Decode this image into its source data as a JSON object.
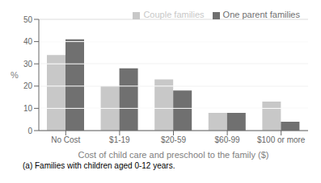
{
  "chart_data": {
    "type": "bar",
    "categories": [
      "No Cost",
      "$1-19",
      "$20-59",
      "$60-99",
      "$100 or more"
    ],
    "series": [
      {
        "name": "Couple families",
        "color": "#c8c8c8",
        "values": [
          34,
          20,
          23,
          8,
          13
        ]
      },
      {
        "name": "One parent families",
        "color": "#707070",
        "values": [
          41,
          28,
          18,
          8,
          4
        ]
      }
    ],
    "xlabel": "Cost of child care and preschool to the family ($)",
    "ylabel": "%",
    "ylim": [
      0,
      50
    ],
    "yticks": [
      0,
      10,
      20,
      30,
      40,
      50
    ],
    "grid": true,
    "legend": "upper right",
    "annotations": [
      "(a) Families with children aged 0-12 years."
    ]
  }
}
